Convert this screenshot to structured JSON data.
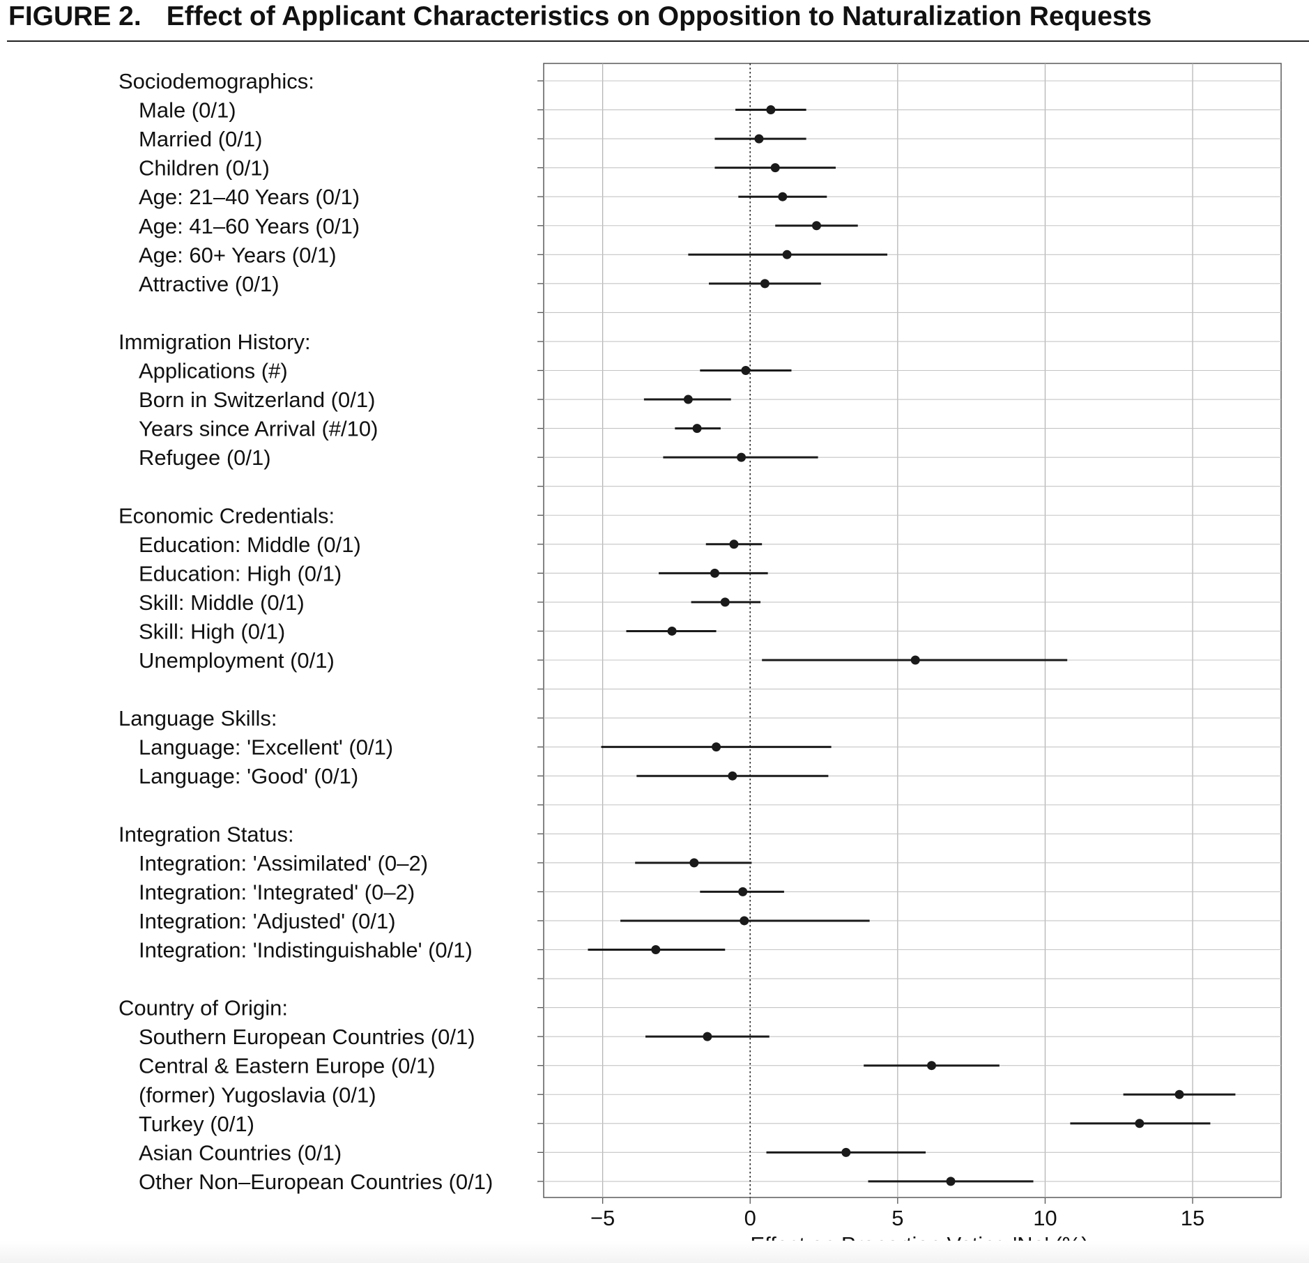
{
  "figure": {
    "number": "FIGURE 2.",
    "title": "Effect of Applicant Characteristics on Opposition to Naturalization Requests"
  },
  "chart_data": {
    "type": "scatter",
    "subtype": "coefficient plot with confidence intervals",
    "xlabel": "Effect on Proportion Voting 'No' (%)",
    "ylabel": "",
    "xlim": [
      -7,
      18
    ],
    "xticks": [
      -5,
      0,
      5,
      10,
      15
    ],
    "xtick_labels": [
      "−5",
      "0",
      "5",
      "10",
      "15"
    ],
    "reference_line": {
      "x": 0,
      "style": "dotted"
    },
    "grid": true,
    "legend": "none",
    "groups": [
      {
        "label": "Sociodemographics:",
        "items": [
          {
            "label": "Male (0/1)",
            "estimate": 0.7,
            "lower": -0.5,
            "upper": 1.9
          },
          {
            "label": "Married (0/1)",
            "estimate": 0.3,
            "lower": -1.2,
            "upper": 1.9
          },
          {
            "label": "Children (0/1)",
            "estimate": 0.85,
            "lower": -1.2,
            "upper": 2.9
          },
          {
            "label": "Age: 21–40 Years (0/1)",
            "estimate": 1.1,
            "lower": -0.4,
            "upper": 2.6
          },
          {
            "label": "Age: 41–60 Years (0/1)",
            "estimate": 2.25,
            "lower": 0.85,
            "upper": 3.65
          },
          {
            "label": "Age: 60+ Years (0/1)",
            "estimate": 1.25,
            "lower": -2.1,
            "upper": 4.65
          },
          {
            "label": "Attractive (0/1)",
            "estimate": 0.5,
            "lower": -1.4,
            "upper": 2.4
          }
        ]
      },
      {
        "label": "Immigration History:",
        "items": [
          {
            "label": "Applications (#)",
            "estimate": -0.15,
            "lower": -1.7,
            "upper": 1.4
          },
          {
            "label": "Born in Switzerland (0/1)",
            "estimate": -2.1,
            "lower": -3.6,
            "upper": -0.65
          },
          {
            "label": "Years since Arrival (#/10)",
            "estimate": -1.8,
            "lower": -2.55,
            "upper": -1.0
          },
          {
            "label": "Refugee (0/1)",
            "estimate": -0.3,
            "lower": -2.95,
            "upper": 2.3
          }
        ]
      },
      {
        "label": "Economic Credentials:",
        "items": [
          {
            "label": "Education: Middle (0/1)",
            "estimate": -0.55,
            "lower": -1.5,
            "upper": 0.4
          },
          {
            "label": "Education: High (0/1)",
            "estimate": -1.2,
            "lower": -3.1,
            "upper": 0.6
          },
          {
            "label": "Skill: Middle (0/1)",
            "estimate": -0.85,
            "lower": -2.0,
            "upper": 0.35
          },
          {
            "label": "Skill: High (0/1)",
            "estimate": -2.65,
            "lower": -4.2,
            "upper": -1.15
          },
          {
            "label": "Unemployment (0/1)",
            "estimate": 5.6,
            "lower": 0.4,
            "upper": 10.75
          }
        ]
      },
      {
        "label": "Language Skills:",
        "items": [
          {
            "label": "Language: 'Excellent' (0/1)",
            "estimate": -1.15,
            "lower": -5.05,
            "upper": 2.75
          },
          {
            "label": "Language: 'Good' (0/1)",
            "estimate": -0.6,
            "lower": -3.85,
            "upper": 2.65
          }
        ]
      },
      {
        "label": "Integration Status:",
        "items": [
          {
            "label": "Integration: 'Assimilated' (0–2)",
            "estimate": -1.9,
            "lower": -3.9,
            "upper": 0.05
          },
          {
            "label": "Integration: 'Integrated' (0–2)",
            "estimate": -0.25,
            "lower": -1.7,
            "upper": 1.15
          },
          {
            "label": "Integration: 'Adjusted' (0/1)",
            "estimate": -0.2,
            "lower": -4.4,
            "upper": 4.05
          },
          {
            "label": "Integration: 'Indistinguishable' (0/1)",
            "estimate": -3.2,
            "lower": -5.5,
            "upper": -0.85
          }
        ]
      },
      {
        "label": "Country of Origin:",
        "items": [
          {
            "label": "Southern European Countries (0/1)",
            "estimate": -1.45,
            "lower": -3.55,
            "upper": 0.65
          },
          {
            "label": "Central & Eastern Europe (0/1)",
            "estimate": 6.15,
            "lower": 3.85,
            "upper": 8.45
          },
          {
            "label": "(former) Yugoslavia (0/1)",
            "estimate": 14.55,
            "lower": 12.65,
            "upper": 16.45
          },
          {
            "label": "Turkey (0/1)",
            "estimate": 13.2,
            "lower": 10.85,
            "upper": 15.6
          },
          {
            "label": "Asian Countries (0/1)",
            "estimate": 3.25,
            "lower": 0.55,
            "upper": 5.95
          },
          {
            "label": "Other Non–European Countries (0/1)",
            "estimate": 6.8,
            "lower": 4.0,
            "upper": 9.6
          }
        ]
      }
    ]
  }
}
